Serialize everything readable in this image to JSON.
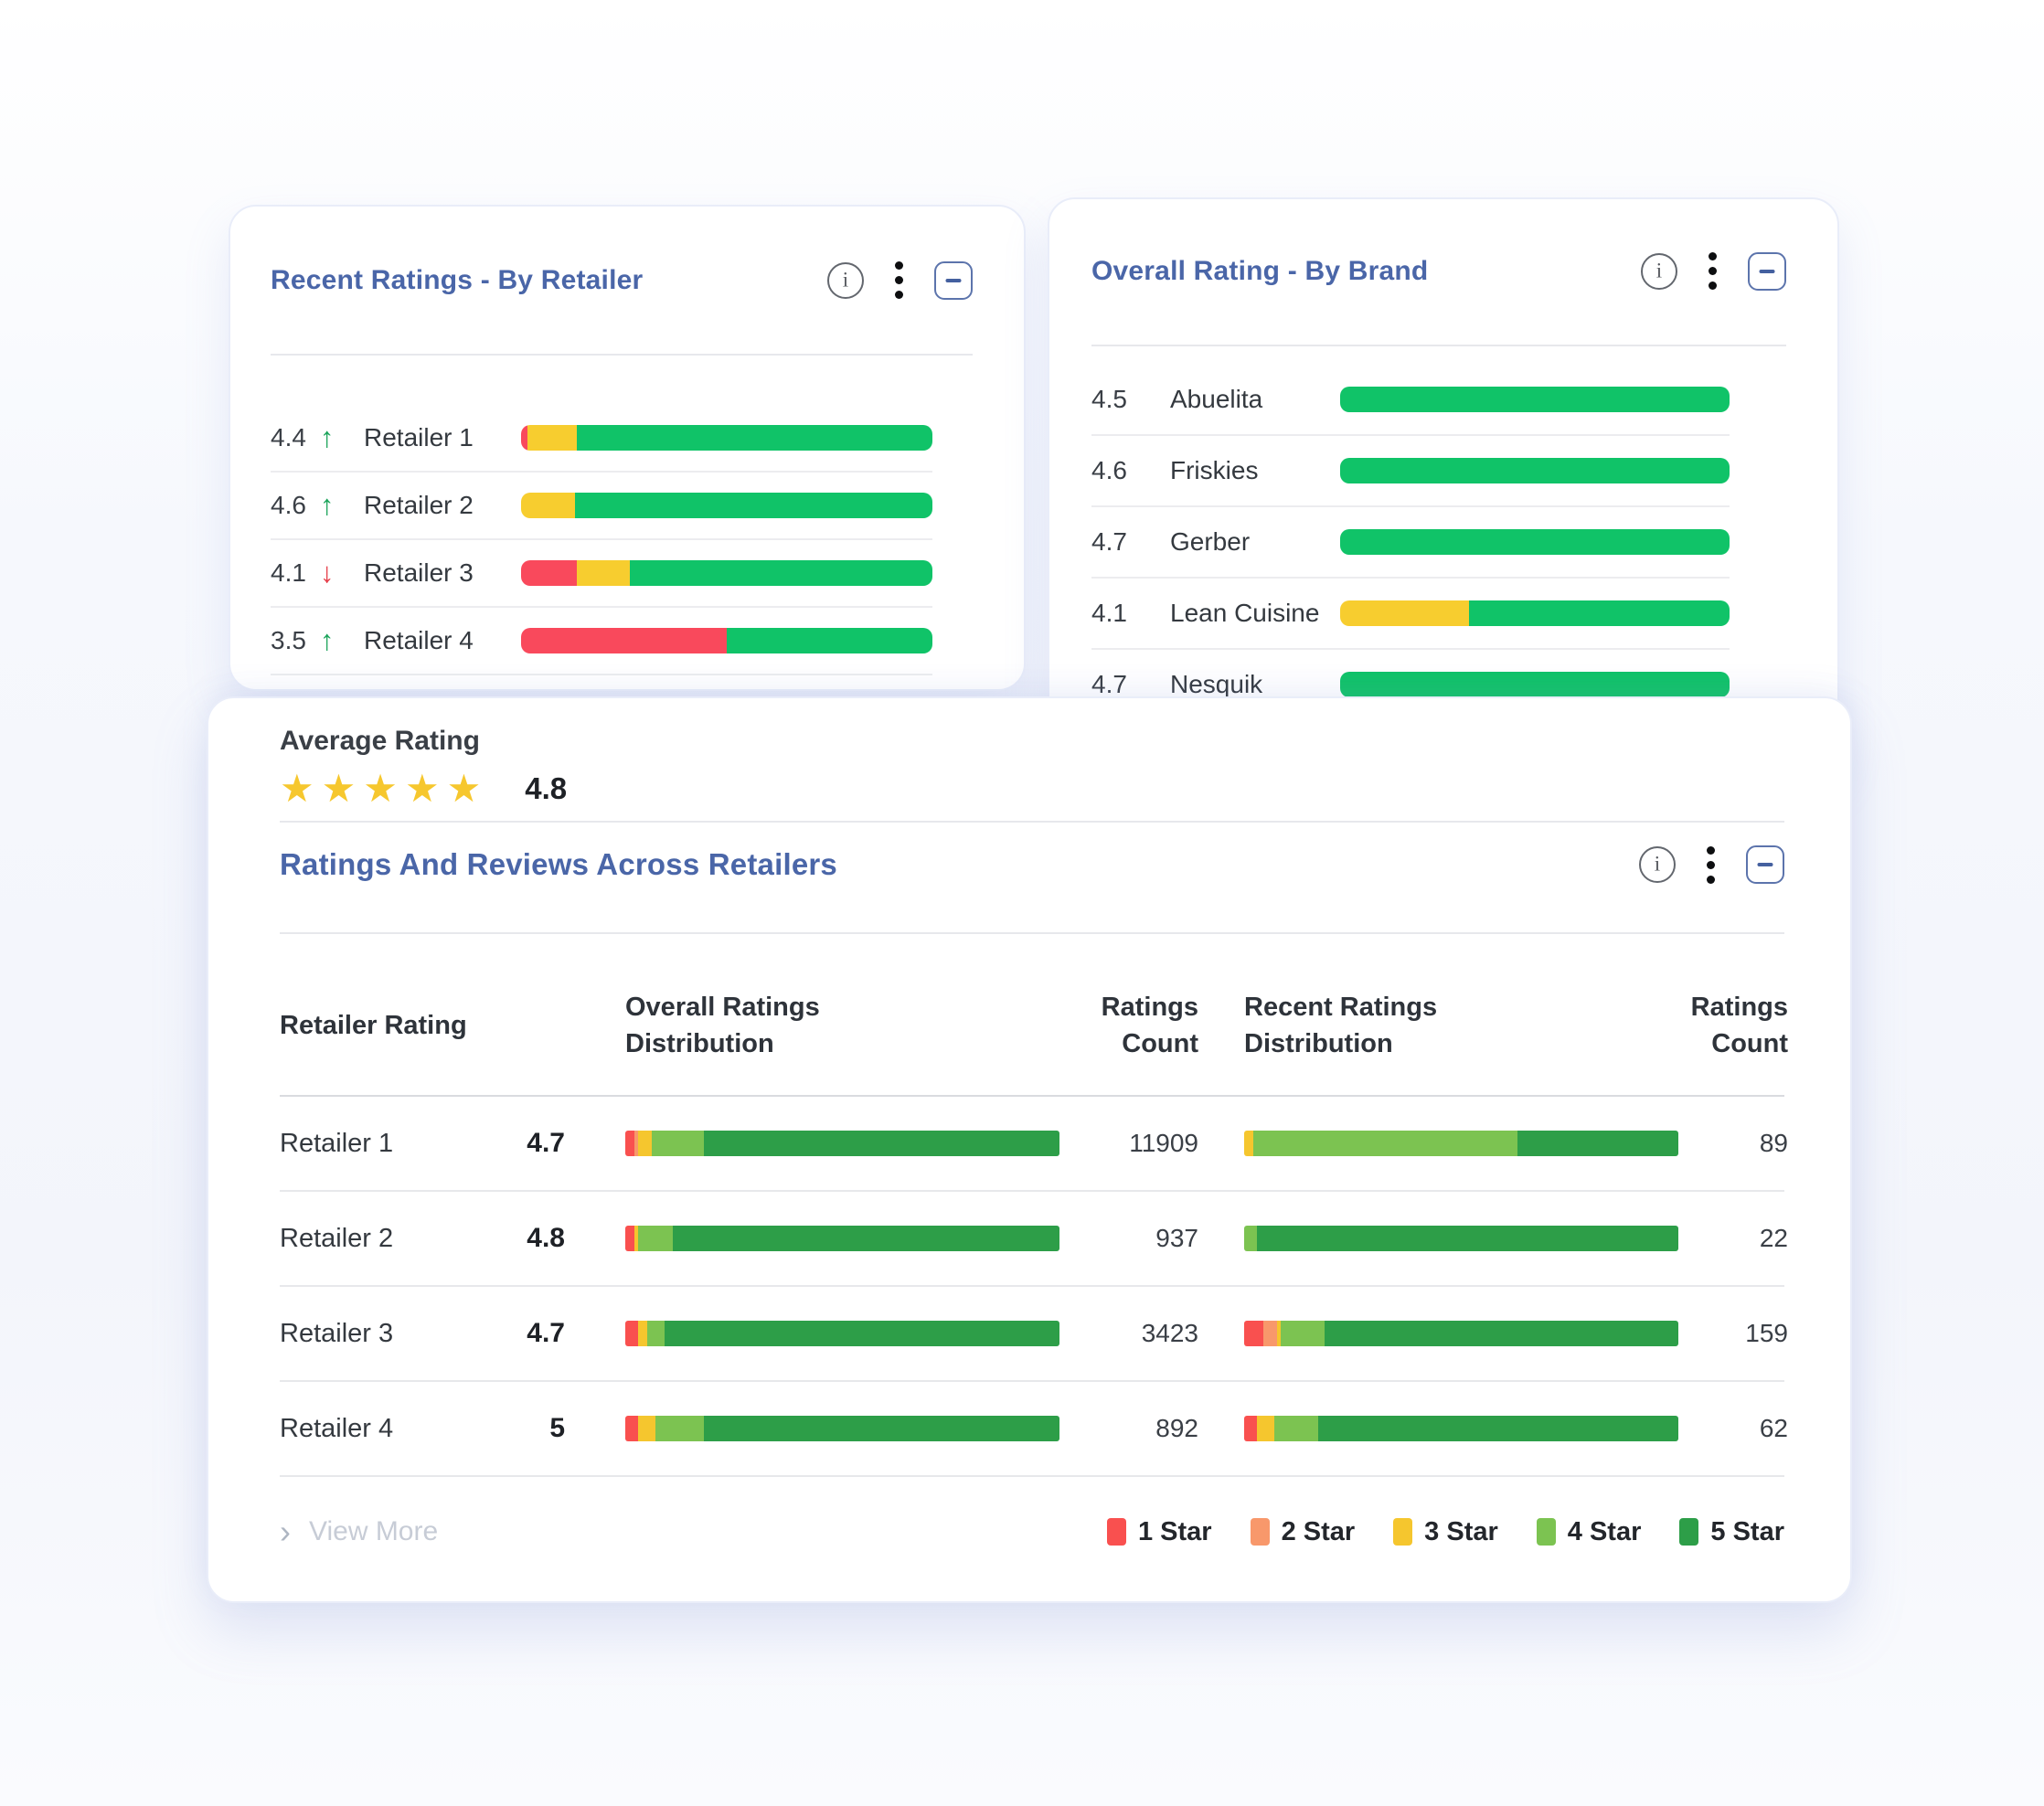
{
  "card_recent_by_retailer": {
    "title": "Recent Ratings - By Retailer",
    "rows": [
      {
        "rating": "4.4",
        "trend": "↑",
        "trend_color": "#1CA45B",
        "label": "Retailer 1",
        "bar": [
          {
            "color": "#F9495C",
            "pct": 1.5
          },
          {
            "color": "#F7CD2F",
            "pct": 12
          },
          {
            "color": "#10C368",
            "pct": 86.5
          }
        ]
      },
      {
        "rating": "4.6",
        "trend": "↑",
        "trend_color": "#1CA45B",
        "label": "Retailer 2",
        "bar": [
          {
            "color": "#F7CD2F",
            "pct": 13
          },
          {
            "color": "#10C368",
            "pct": 87
          }
        ]
      },
      {
        "rating": "4.1",
        "trend": "↓",
        "trend_color": "#E63E49",
        "label": "Retailer 3",
        "bar": [
          {
            "color": "#F9495C",
            "pct": 13.5
          },
          {
            "color": "#F7CD2F",
            "pct": 13
          },
          {
            "color": "#10C368",
            "pct": 73.5
          }
        ]
      },
      {
        "rating": "3.5",
        "trend": "↑",
        "trend_color": "#1CA45B",
        "label": "Retailer 4",
        "bar": [
          {
            "color": "#F9495C",
            "pct": 50
          },
          {
            "color": "#10C368",
            "pct": 50
          }
        ]
      }
    ]
  },
  "card_overall_by_brand": {
    "title": "Overall Rating - By Brand",
    "rows": [
      {
        "rating": "4.5",
        "label": "Abuelita",
        "bar": [
          {
            "color": "#10C368",
            "pct": 100
          }
        ]
      },
      {
        "rating": "4.6",
        "label": "Friskies",
        "bar": [
          {
            "color": "#10C368",
            "pct": 100
          }
        ]
      },
      {
        "rating": "4.7",
        "label": "Gerber",
        "bar": [
          {
            "color": "#10C368",
            "pct": 100
          }
        ]
      },
      {
        "rating": "4.1",
        "label": "Lean Cuisine",
        "bar": [
          {
            "color": "#F7CD2F",
            "pct": 33
          },
          {
            "color": "#10C368",
            "pct": 67
          }
        ]
      },
      {
        "rating": "4.7",
        "label": "Nesquik",
        "bar": [
          {
            "color": "#10C368",
            "pct": 100
          }
        ]
      }
    ]
  },
  "card_ratings_reviews": {
    "average_rating_label": "Average Rating",
    "stars": "★★★★★",
    "average_rating_value": "4.8",
    "section_title": "Ratings And Reviews Across Retailers",
    "headers": {
      "retailer": "Retailer Rating",
      "overall": "Overall Ratings Distribution",
      "overall_count": "Ratings Count",
      "recent": "Recent Ratings Distribution",
      "recent_count": "Ratings Count"
    },
    "rows": [
      {
        "label": "Retailer 1",
        "rating": "4.7",
        "overall_count": "11909",
        "recent_count": "89",
        "overall_bar": [
          {
            "color": "#F9504F",
            "pct": 2
          },
          {
            "color": "#F8986B",
            "pct": 1
          },
          {
            "color": "#F5C62E",
            "pct": 3
          },
          {
            "color": "#7CC351",
            "pct": 12
          },
          {
            "color": "#2D9E48",
            "pct": 82
          }
        ],
        "recent_bar": [
          {
            "color": "#F5C62E",
            "pct": 2
          },
          {
            "color": "#7CC351",
            "pct": 61
          },
          {
            "color": "#2D9E48",
            "pct": 37
          }
        ]
      },
      {
        "label": "Retailer 2",
        "rating": "4.8",
        "overall_count": "937",
        "recent_count": "22",
        "overall_bar": [
          {
            "color": "#F9504F",
            "pct": 2
          },
          {
            "color": "#F5C62E",
            "pct": 1
          },
          {
            "color": "#7CC351",
            "pct": 8
          },
          {
            "color": "#2D9E48",
            "pct": 89
          }
        ],
        "recent_bar": [
          {
            "color": "#7CC351",
            "pct": 3
          },
          {
            "color": "#2D9E48",
            "pct": 97
          }
        ]
      },
      {
        "label": "Retailer 3",
        "rating": "4.7",
        "overall_count": "3423",
        "recent_count": "159",
        "overall_bar": [
          {
            "color": "#F9504F",
            "pct": 3
          },
          {
            "color": "#F5C62E",
            "pct": 2
          },
          {
            "color": "#7CC351",
            "pct": 4
          },
          {
            "color": "#2D9E48",
            "pct": 91
          }
        ],
        "recent_bar": [
          {
            "color": "#F9504F",
            "pct": 4.5
          },
          {
            "color": "#F8986B",
            "pct": 3
          },
          {
            "color": "#F5C62E",
            "pct": 1
          },
          {
            "color": "#7CC351",
            "pct": 10
          },
          {
            "color": "#2D9E48",
            "pct": 81.5
          }
        ]
      },
      {
        "label": "Retailer 4",
        "rating": "5",
        "overall_count": "892",
        "recent_count": "62",
        "overall_bar": [
          {
            "color": "#F9504F",
            "pct": 3
          },
          {
            "color": "#F5C62E",
            "pct": 4
          },
          {
            "color": "#7CC351",
            "pct": 11
          },
          {
            "color": "#2D9E48",
            "pct": 82
          }
        ],
        "recent_bar": [
          {
            "color": "#F9504F",
            "pct": 3
          },
          {
            "color": "#F5C62E",
            "pct": 4
          },
          {
            "color": "#7CC351",
            "pct": 10
          },
          {
            "color": "#2D9E48",
            "pct": 83
          }
        ]
      }
    ],
    "view_more_chevron": "›",
    "view_more_label": "View More",
    "legend": [
      {
        "label": "1 Star",
        "color": "#F9504F"
      },
      {
        "label": "2 Star",
        "color": "#F8986B"
      },
      {
        "label": "3 Star",
        "color": "#F5C62E"
      },
      {
        "label": "4 Star",
        "color": "#7CC351"
      },
      {
        "label": "5 Star",
        "color": "#2D9E48"
      }
    ]
  }
}
